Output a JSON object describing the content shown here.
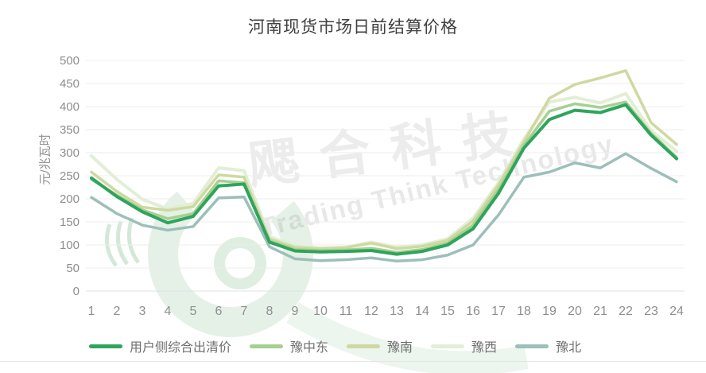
{
  "title": "河南现货市场日前结算价格",
  "watermark": {
    "cn": "飔合科技",
    "en": "Trading Think Technology"
  },
  "chart_data": {
    "type": "line",
    "title": "河南现货市场日前结算价格",
    "xlabel": "",
    "ylabel": "元/兆瓦时",
    "x": [
      1,
      2,
      3,
      4,
      5,
      6,
      7,
      8,
      9,
      10,
      11,
      12,
      13,
      14,
      15,
      16,
      17,
      18,
      19,
      20,
      21,
      22,
      23,
      24
    ],
    "ylim": [
      0,
      500
    ],
    "ytick_step": 50,
    "grid": true,
    "legend_position": "bottom",
    "grid_color": "#ececec",
    "axis_text_color": "#8e8e8e",
    "series": [
      {
        "name": "用户侧综合出清价",
        "color": "#2fa45c",
        "width": 4,
        "values": [
          245,
          205,
          172,
          148,
          162,
          228,
          232,
          106,
          87,
          85,
          86,
          88,
          80,
          86,
          100,
          135,
          212,
          310,
          372,
          392,
          387,
          404,
          338,
          287
        ]
      },
      {
        "name": "豫中东",
        "color": "#a6d092",
        "width": 3.5,
        "values": [
          242,
          208,
          176,
          157,
          168,
          239,
          235,
          109,
          90,
          88,
          89,
          93,
          84,
          90,
          104,
          143,
          220,
          316,
          390,
          406,
          398,
          410,
          342,
          290
        ]
      },
      {
        "name": "豫南",
        "color": "#ced9a0",
        "width": 3.5,
        "values": [
          258,
          216,
          182,
          175,
          183,
          252,
          247,
          113,
          95,
          92,
          94,
          104,
          92,
          97,
          110,
          152,
          230,
          324,
          418,
          448,
          462,
          478,
          365,
          318
        ]
      },
      {
        "name": "豫西",
        "color": "#e2eed6",
        "width": 4,
        "values": [
          293,
          242,
          199,
          178,
          190,
          267,
          261,
          118,
          98,
          93,
          95,
          106,
          95,
          100,
          113,
          158,
          235,
          330,
          410,
          420,
          408,
          428,
          348,
          303
        ]
      },
      {
        "name": "豫北",
        "color": "#9cbfba",
        "width": 3.5,
        "values": [
          203,
          168,
          143,
          132,
          140,
          202,
          204,
          96,
          70,
          66,
          68,
          72,
          65,
          68,
          78,
          100,
          165,
          247,
          258,
          278,
          267,
          298,
          266,
          237
        ]
      }
    ]
  }
}
